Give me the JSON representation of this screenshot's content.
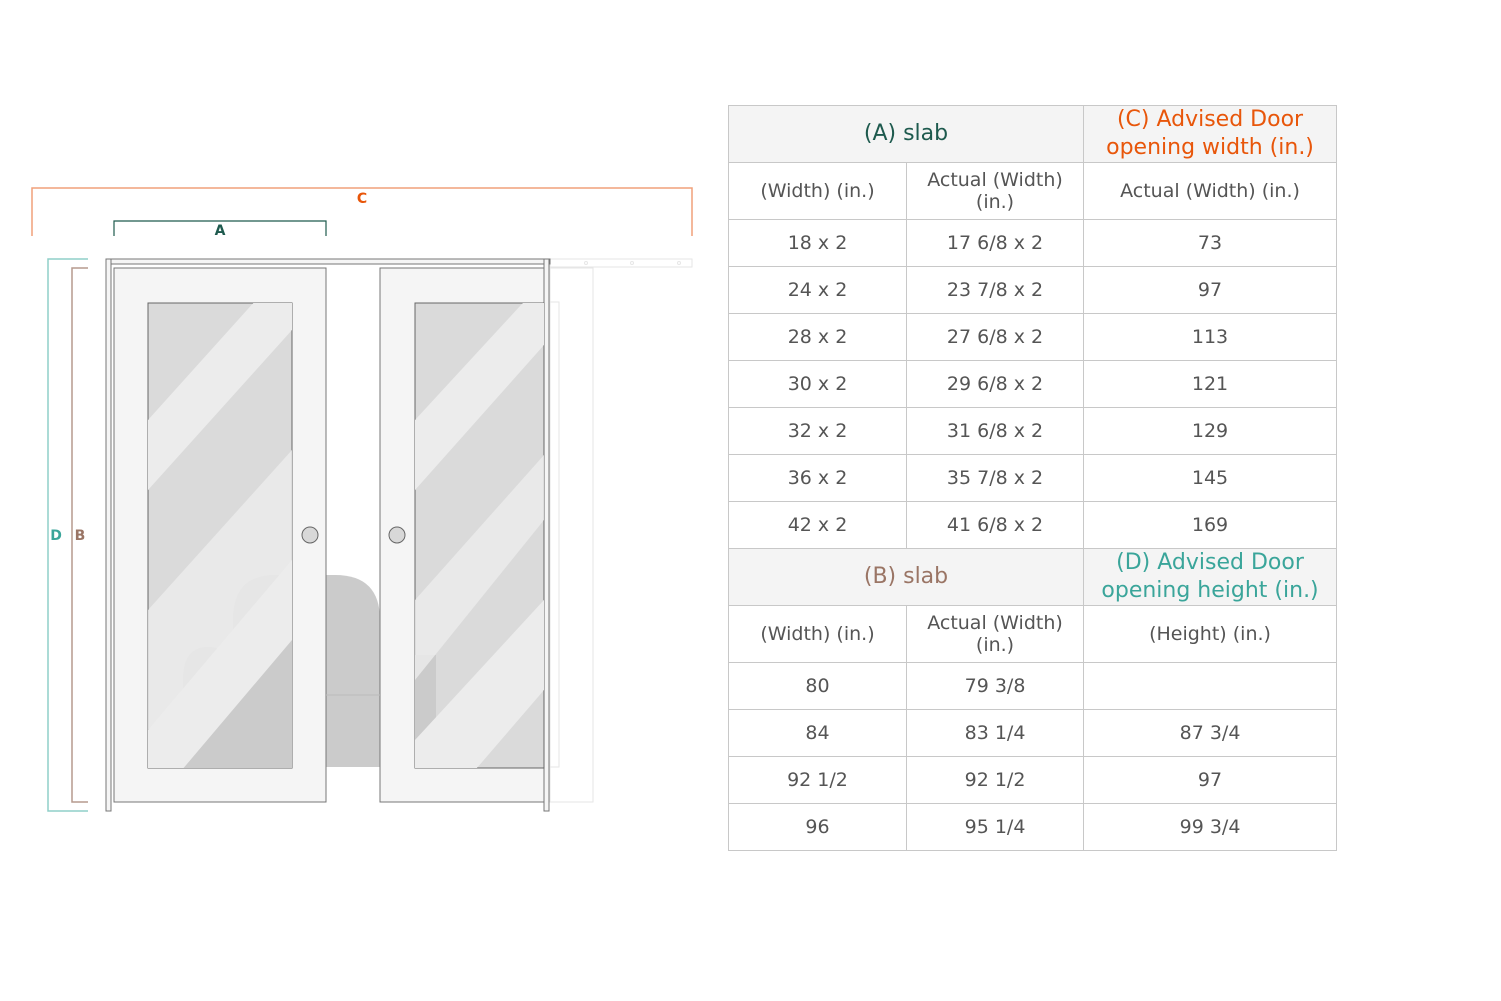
{
  "diagram": {
    "labels": {
      "a": "A",
      "b": "B",
      "c": "C",
      "d": "D"
    },
    "colors": {
      "a": "#1e5a4e",
      "b": "#9a7565",
      "c": "#e8560a",
      "d": "#3aa59a"
    }
  },
  "width_table": {
    "slab_header": "(A) slab",
    "advised_header": "(C) Advised Door opening width (in.)",
    "columns": [
      "(Width) (in.)",
      "Actual (Width) (in.)",
      "Actual (Width) (in.)"
    ],
    "rows": [
      [
        "18 x 2",
        "17 6/8 x 2",
        "73"
      ],
      [
        "24 x 2",
        "23 7/8 x 2",
        "97"
      ],
      [
        "28 x 2",
        "27 6/8 x 2",
        "113"
      ],
      [
        "30 x 2",
        "29 6/8 x 2",
        "121"
      ],
      [
        "32 x 2",
        "31 6/8 x 2",
        "129"
      ],
      [
        "36 x 2",
        "35 7/8 x 2",
        "145"
      ],
      [
        "42 x 2",
        "41 6/8 x 2",
        "169"
      ]
    ]
  },
  "height_table": {
    "slab_header": "(B) slab",
    "advised_header": "(D) Advised Door opening height (in.)",
    "columns": [
      "(Width) (in.)",
      "Actual (Width) (in.)",
      "(Height) (in.)"
    ],
    "rows": [
      [
        "80",
        "79 3/8",
        ""
      ],
      [
        "84",
        "83 1/4",
        "87 3/4"
      ],
      [
        "92 1/2",
        "92 1/2",
        "97"
      ],
      [
        "96",
        "95 1/4",
        "99 3/4"
      ]
    ]
  }
}
